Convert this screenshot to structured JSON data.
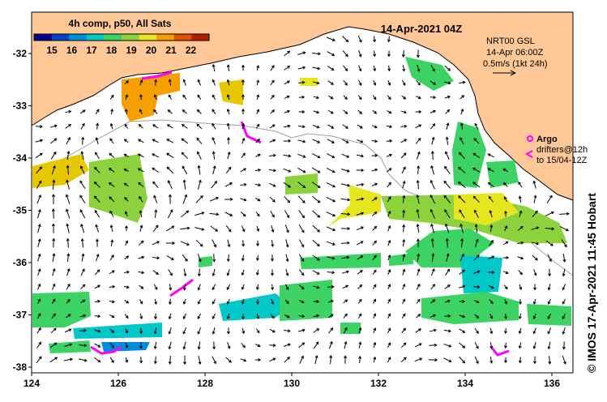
{
  "colorbar": {
    "title": "4h comp, p50, All Sats",
    "ticks": [
      "15",
      "16",
      "17",
      "18",
      "19",
      "20",
      "21",
      "22"
    ],
    "colors": [
      "#00008b",
      "#0046c8",
      "#008cdc",
      "#00c8c8",
      "#3cd264",
      "#8cd23c",
      "#e6e61e",
      "#f5a000",
      "#e05000",
      "#b41e00"
    ]
  },
  "header": {
    "date_label": "14-Apr-2021 04Z",
    "nrt_label": "NRT00 GSL",
    "time_label": "14-Apr 06:00Z",
    "scale_label": "0.5m/s (1kt 24h)"
  },
  "legend": {
    "argo_label": "Argo",
    "drifters_label": "drifters@12h",
    "drifters_to_label": "to 15/04-12Z"
  },
  "axes": {
    "lon_ticks": [
      "124",
      "126",
      "128",
      "130",
      "132",
      "134",
      "136"
    ],
    "lat_ticks": [
      "-32",
      "-33",
      "-34",
      "-35",
      "-36",
      "-37",
      "-38"
    ]
  },
  "credit": "© IMOS 17-Apr-2021 11:45 Hobart",
  "colors": {
    "land": "#ffc896",
    "argo": "#ff00ff",
    "current_arrow": "#000000",
    "grid_line": "#a0a0a0"
  }
}
